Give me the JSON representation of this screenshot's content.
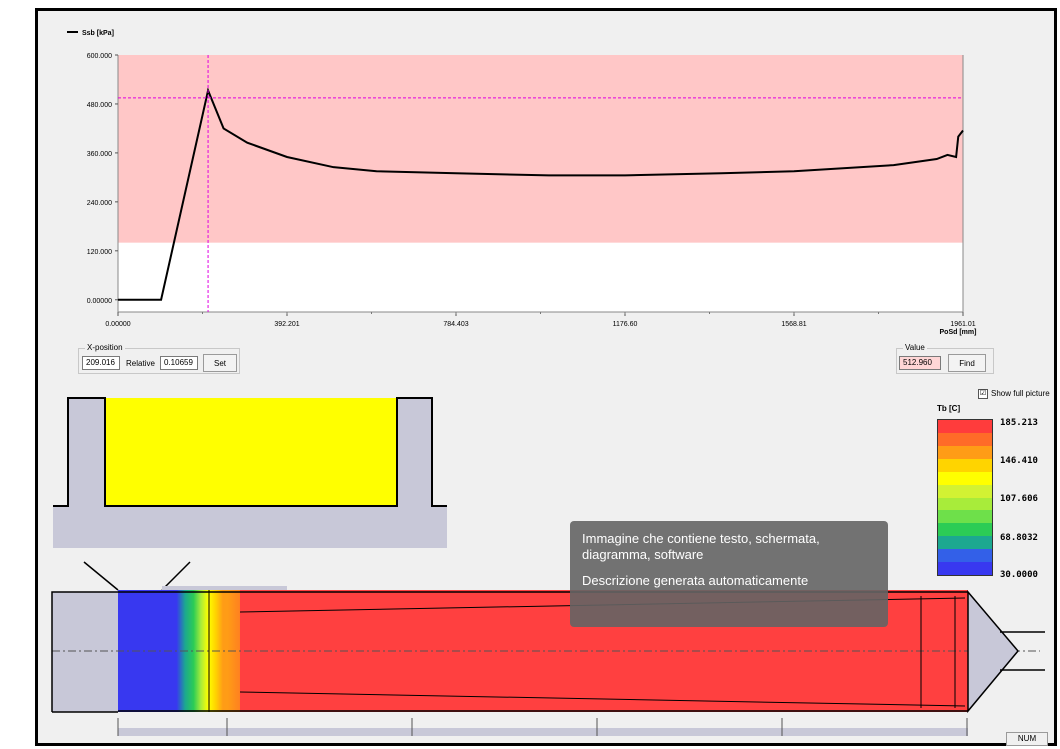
{
  "chart_data": {
    "type": "line",
    "series": [
      {
        "name": "Ssb [kPa]",
        "x": [
          0,
          100,
          209.016,
          245,
          300,
          392.201,
          500,
          600,
          784.403,
          1000,
          1176.6,
          1400,
          1568.81,
          1800,
          1900,
          1925,
          1945,
          1950,
          1961.01
        ],
        "values": [
          0,
          0,
          512.96,
          420,
          385,
          350,
          325,
          315,
          310,
          305,
          305,
          310,
          315,
          330,
          345,
          355,
          350,
          400,
          415
        ]
      }
    ],
    "xlabel": "PoSd [mm]",
    "x_ticks": [
      "0.00000",
      "392.201",
      "784.403",
      "1176.60",
      "1568.81",
      "1961.01"
    ],
    "y_ticks": [
      "600.000",
      "480.000",
      "360.000",
      "240.000",
      "120.000",
      "0.00000"
    ],
    "xlim": [
      0,
      1961.01
    ],
    "ylim": [
      -30,
      600
    ],
    "band": [
      140,
      600
    ],
    "cursor_x": 209.016,
    "cursor_y": 495
  },
  "xpos": {
    "group_label": "X-position",
    "value": "209.016",
    "relative_label": "Relative",
    "relative_value": "0.10659",
    "set_label": "Set"
  },
  "valuebox": {
    "group_label": "Value",
    "value": "512.960",
    "find_label": "Find"
  },
  "show_full_picture": {
    "label": "Show full picture",
    "mark": "☑"
  },
  "temp_legend": {
    "title": "Tb [C]",
    "labels": [
      "185.213",
      "146.410",
      "107.606",
      "68.8032",
      "30.0000"
    ],
    "colors": [
      "#ff3c3c",
      "#ff6b28",
      "#ff9c16",
      "#ffd400",
      "#ffff00",
      "#d2f233",
      "#a8ec3a",
      "#6ee04a",
      "#2ccc55",
      "#1ca890",
      "#3360e8",
      "#3838f0"
    ]
  },
  "overlay": {
    "line1": "Immagine che contiene testo, schermata,",
    "line2": "diagramma, software",
    "line3": "Descrizione generata automaticamente"
  },
  "status": {
    "num": "NUM"
  },
  "colors": {
    "band": "#ffc7c7",
    "cursor": "#e000e0",
    "curve": "#000000",
    "mold": "#c8c8d8",
    "fill": "#ffff00",
    "hot": "#ff4040"
  }
}
